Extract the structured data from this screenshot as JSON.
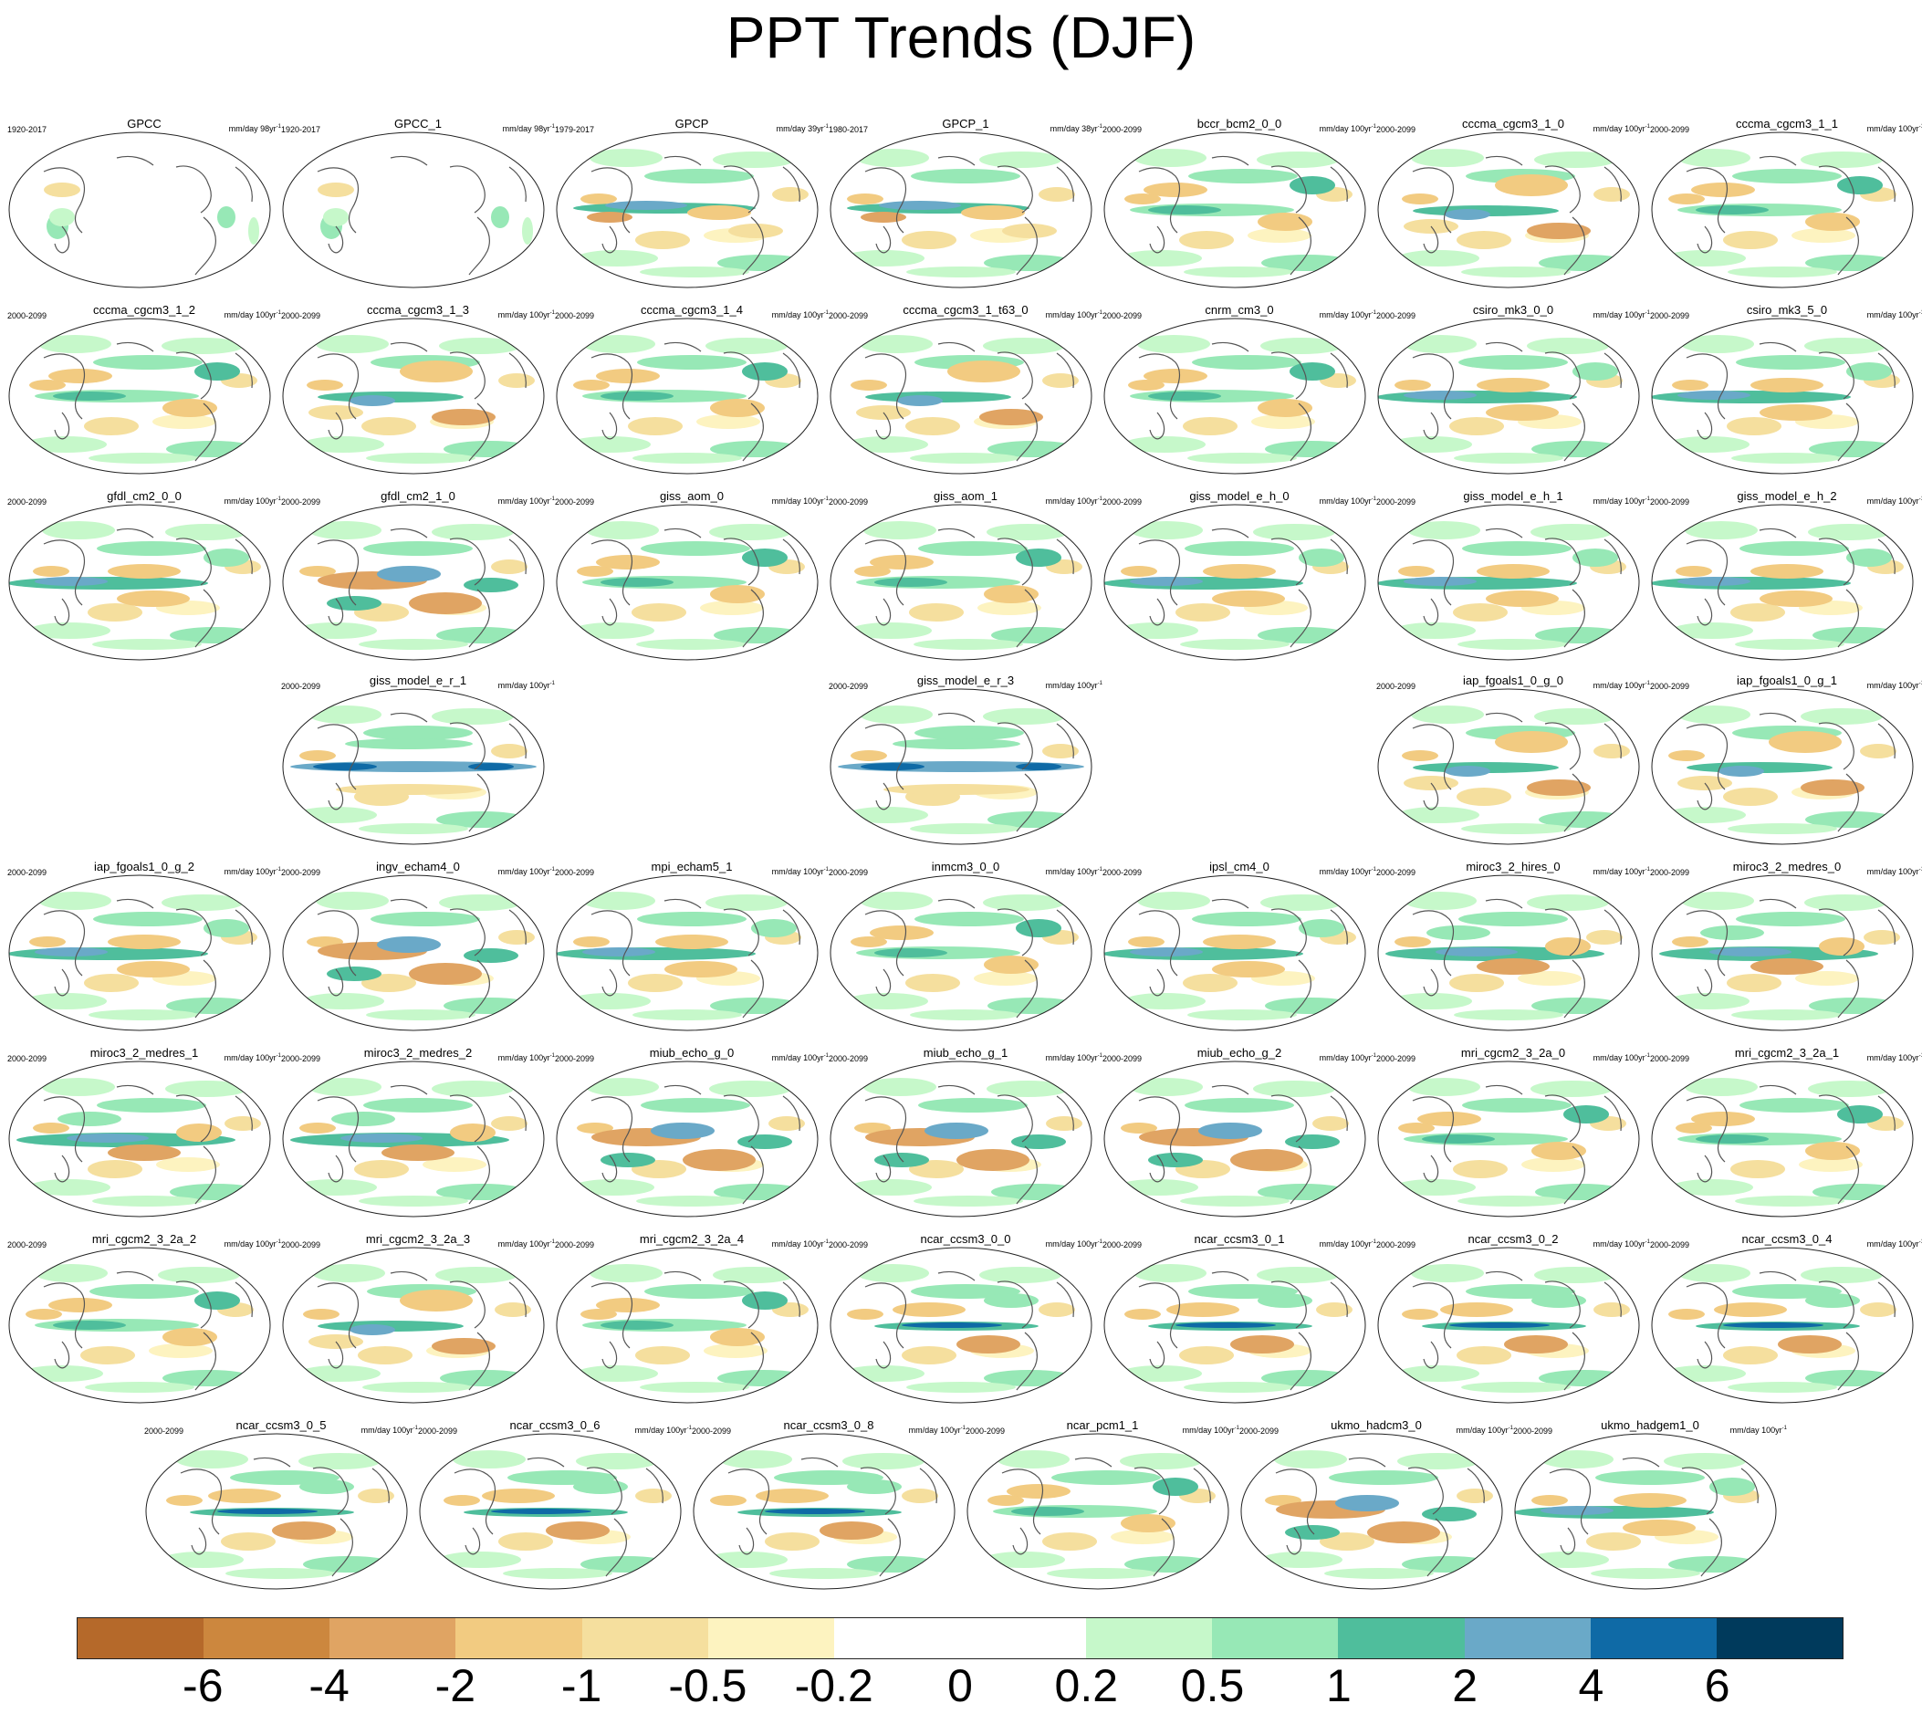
{
  "title": "PPT Trends (DJF)",
  "unit_prefix": "mm/day ",
  "unit_suffix": "yr",
  "unit_exp": "-1",
  "panels": [
    {
      "name": "GPCC",
      "period": "1920-2017",
      "years": "98",
      "pattern": "obs-land"
    },
    {
      "name": "GPCC_1",
      "period": "1920-2017",
      "years": "98",
      "pattern": "obs-land"
    },
    {
      "name": "GPCP",
      "period": "1979-2017",
      "years": "39",
      "pattern": "obs"
    },
    {
      "name": "GPCP_1",
      "period": "1980-2017",
      "years": "38",
      "pattern": "obs"
    },
    {
      "name": "bccr_bcm2_0_0",
      "period": "2000-2099",
      "years": "100",
      "pattern": "model-a"
    },
    {
      "name": "cccma_cgcm3_1_0",
      "period": "2000-2099",
      "years": "100",
      "pattern": "model-b"
    },
    {
      "name": "cccma_cgcm3_1_1",
      "period": "2000-2099",
      "years": "100",
      "pattern": "model-a"
    },
    {
      "name": "cccma_cgcm3_1_2",
      "period": "2000-2099",
      "years": "100",
      "pattern": "model-a"
    },
    {
      "name": "cccma_cgcm3_1_3",
      "period": "2000-2099",
      "years": "100",
      "pattern": "model-b"
    },
    {
      "name": "cccma_cgcm3_1_4",
      "period": "2000-2099",
      "years": "100",
      "pattern": "model-a"
    },
    {
      "name": "cccma_cgcm3_1_t63_0",
      "period": "2000-2099",
      "years": "100",
      "pattern": "model-b"
    },
    {
      "name": "cnrm_cm3_0",
      "period": "2000-2099",
      "years": "100",
      "pattern": "model-a"
    },
    {
      "name": "csiro_mk3_0_0",
      "period": "2000-2099",
      "years": "100",
      "pattern": "model-c"
    },
    {
      "name": "csiro_mk3_5_0",
      "period": "2000-2099",
      "years": "100",
      "pattern": "model-c"
    },
    {
      "name": "gfdl_cm2_0_0",
      "period": "2000-2099",
      "years": "100",
      "pattern": "model-c"
    },
    {
      "name": "gfdl_cm2_1_0",
      "period": "2000-2099",
      "years": "100",
      "pattern": "model-d"
    },
    {
      "name": "giss_aom_0",
      "period": "2000-2099",
      "years": "100",
      "pattern": "model-a"
    },
    {
      "name": "giss_aom_1",
      "period": "2000-2099",
      "years": "100",
      "pattern": "model-a"
    },
    {
      "name": "giss_model_e_h_0",
      "period": "2000-2099",
      "years": "100",
      "pattern": "model-c"
    },
    {
      "name": "giss_model_e_h_1",
      "period": "2000-2099",
      "years": "100",
      "pattern": "model-c"
    },
    {
      "name": "giss_model_e_h_2",
      "period": "2000-2099",
      "years": "100",
      "pattern": "model-c"
    },
    {
      "name": "giss_model_e_r_1",
      "period": "2000-2099",
      "years": "100",
      "pattern": "model-e"
    },
    {
      "name": "giss_model_e_r_3",
      "period": "2000-2099",
      "years": "100",
      "pattern": "model-e"
    },
    {
      "name": "iap_fgoals1_0_g_0",
      "period": "2000-2099",
      "years": "100",
      "pattern": "model-b"
    },
    {
      "name": "iap_fgoals1_0_g_1",
      "period": "2000-2099",
      "years": "100",
      "pattern": "model-b"
    },
    {
      "name": "iap_fgoals1_0_g_2",
      "period": "2000-2099",
      "years": "100",
      "pattern": "model-c"
    },
    {
      "name": "ingv_echam4_0",
      "period": "2000-2099",
      "years": "100",
      "pattern": "model-d"
    },
    {
      "name": "mpi_echam5_1",
      "period": "2000-2099",
      "years": "100",
      "pattern": "model-c"
    },
    {
      "name": "inmcm3_0_0",
      "period": "2000-2099",
      "years": "100",
      "pattern": "model-a"
    },
    {
      "name": "ipsl_cm4_0",
      "period": "2000-2099",
      "years": "100",
      "pattern": "model-c"
    },
    {
      "name": "miroc3_2_hires_0",
      "period": "2000-2099",
      "years": "100",
      "pattern": "model-f"
    },
    {
      "name": "miroc3_2_medres_0",
      "period": "2000-2099",
      "years": "100",
      "pattern": "model-f"
    },
    {
      "name": "miroc3_2_medres_1",
      "period": "2000-2099",
      "years": "100",
      "pattern": "model-f"
    },
    {
      "name": "miroc3_2_medres_2",
      "period": "2000-2099",
      "years": "100",
      "pattern": "model-f"
    },
    {
      "name": "miub_echo_g_0",
      "period": "2000-2099",
      "years": "100",
      "pattern": "model-d"
    },
    {
      "name": "miub_echo_g_1",
      "period": "2000-2099",
      "years": "100",
      "pattern": "model-d"
    },
    {
      "name": "miub_echo_g_2",
      "period": "2000-2099",
      "years": "100",
      "pattern": "model-d"
    },
    {
      "name": "mri_cgcm2_3_2a_0",
      "period": "2000-2099",
      "years": "100",
      "pattern": "model-a"
    },
    {
      "name": "mri_cgcm2_3_2a_1",
      "period": "2000-2099",
      "years": "100",
      "pattern": "model-a"
    },
    {
      "name": "mri_cgcm2_3_2a_2",
      "period": "2000-2099",
      "years": "100",
      "pattern": "model-a"
    },
    {
      "name": "mri_cgcm2_3_2a_3",
      "period": "2000-2099",
      "years": "100",
      "pattern": "model-b"
    },
    {
      "name": "mri_cgcm2_3_2a_4",
      "period": "2000-2099",
      "years": "100",
      "pattern": "model-a"
    },
    {
      "name": "ncar_ccsm3_0_0",
      "period": "2000-2099",
      "years": "100",
      "pattern": "model-g"
    },
    {
      "name": "ncar_ccsm3_0_1",
      "period": "2000-2099",
      "years": "100",
      "pattern": "model-g"
    },
    {
      "name": "ncar_ccsm3_0_2",
      "period": "2000-2099",
      "years": "100",
      "pattern": "model-g"
    },
    {
      "name": "ncar_ccsm3_0_4",
      "period": "2000-2099",
      "years": "100",
      "pattern": "model-g"
    },
    {
      "name": "ncar_ccsm3_0_5",
      "period": "2000-2099",
      "years": "100",
      "pattern": "model-g"
    },
    {
      "name": "ncar_ccsm3_0_6",
      "period": "2000-2099",
      "years": "100",
      "pattern": "model-g"
    },
    {
      "name": "ncar_ccsm3_0_8",
      "period": "2000-2099",
      "years": "100",
      "pattern": "model-g"
    },
    {
      "name": "ncar_pcm1_1",
      "period": "2000-2099",
      "years": "100",
      "pattern": "model-a"
    },
    {
      "name": "ukmo_hadcm3_0",
      "period": "2000-2099",
      "years": "100",
      "pattern": "model-d"
    },
    {
      "name": "ukmo_hadgem1_0",
      "period": "2000-2099",
      "years": "100",
      "pattern": "model-c"
    }
  ],
  "colorbar": {
    "colors": [
      "#b5692a",
      "#cc873e",
      "#e0a463",
      "#f2cb81",
      "#f5df9e",
      "#fdf3c0",
      "#ffffff",
      "#ffffff",
      "#c6f8ca",
      "#97e8b6",
      "#4fbe9c",
      "#6aa9c8",
      "#0f6aa6",
      "#003a5c"
    ],
    "labels": [
      "-6",
      "-4",
      "-2",
      "-1",
      "-0.5",
      "-0.2",
      "0",
      "0.2",
      "0.5",
      "1",
      "2",
      "4",
      "6"
    ]
  }
}
